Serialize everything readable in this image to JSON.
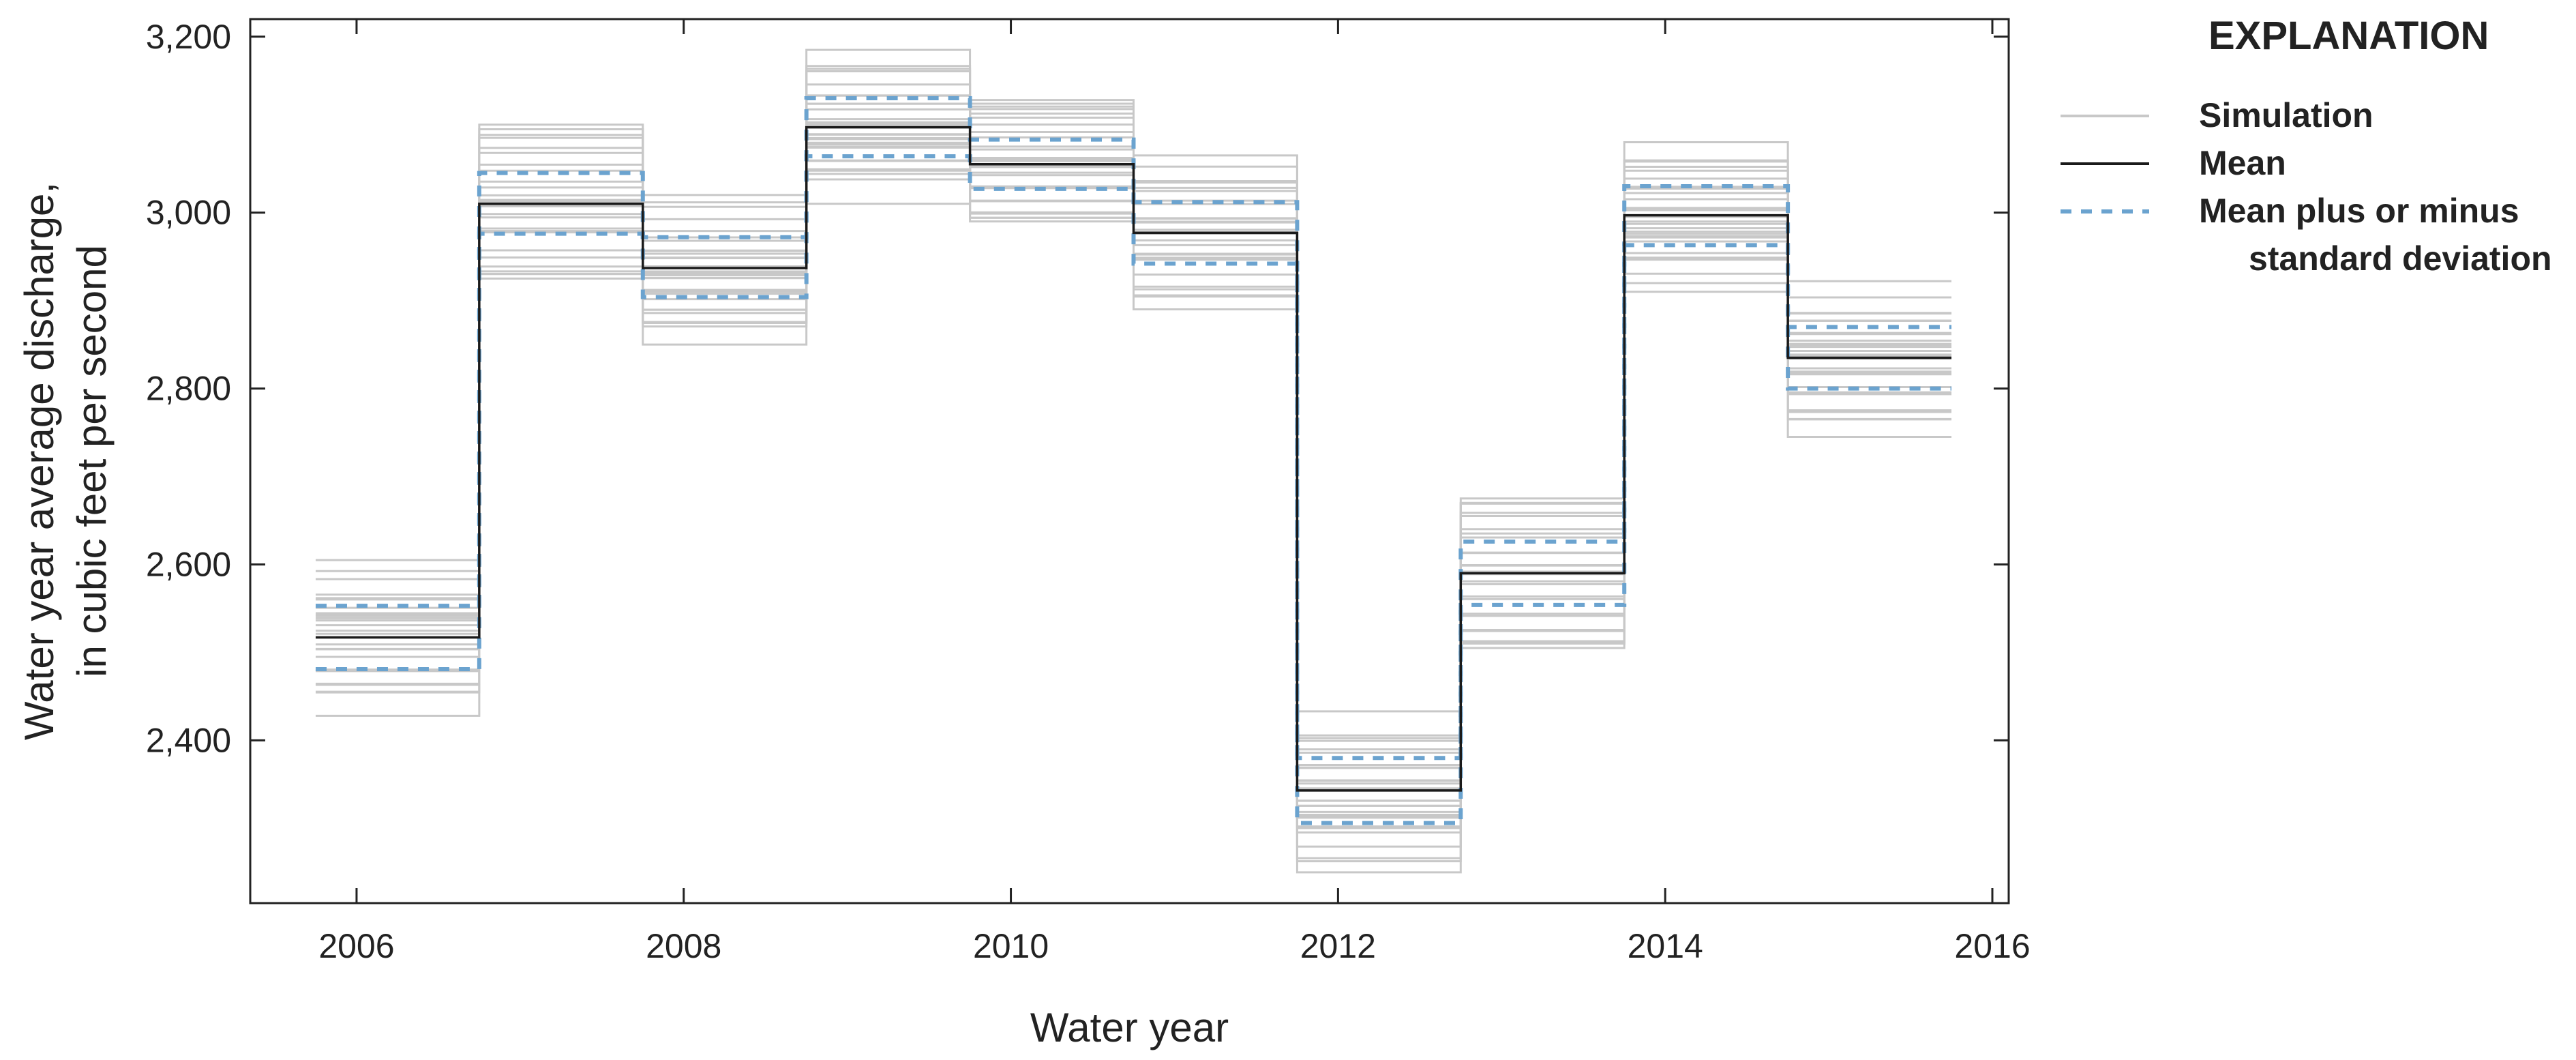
{
  "chart_data": {
    "type": "line",
    "xlabel": "Water year",
    "ylabel_lines": [
      "Water year average discharge,",
      "in cubic feet per second"
    ],
    "xlim": [
      2005.35,
      2016.1
    ],
    "ylim": [
      2215,
      3220
    ],
    "xticks": [
      2006,
      2008,
      2010,
      2012,
      2014,
      2016
    ],
    "xtick_labels": [
      "2006",
      "2008",
      "2010",
      "2012",
      "2014",
      "2016"
    ],
    "yticks": [
      2400,
      2600,
      2800,
      3000,
      3200
    ],
    "ytick_labels": [
      "2,400",
      "2,600",
      "2,800",
      "3,000",
      "3,200"
    ],
    "grid": false,
    "legend": {
      "title": "EXPLANATION",
      "placement": "right",
      "entries": [
        {
          "label_lines": [
            "Simulation"
          ],
          "style": "simulation"
        },
        {
          "label_lines": [
            "Mean"
          ],
          "style": "mean"
        },
        {
          "label_lines": [
            "Mean plus or minus",
            "standard deviation"
          ],
          "style": "std"
        }
      ]
    },
    "colors": {
      "simulation": "#c8c8c8",
      "mean": "#1a1a1a",
      "std": "#6ba3cf",
      "axis": "#222222"
    },
    "step_x_edges": [
      2005.75,
      2006.75,
      2007.75,
      2008.75,
      2009.75,
      2010.75,
      2011.75,
      2012.75,
      2013.75,
      2014.75,
      2015.75
    ],
    "years": [
      2006,
      2007,
      2008,
      2009,
      2010,
      2011,
      2012,
      2013,
      2014,
      2015
    ],
    "mean": [
      2517,
      3010,
      2937,
      3097,
      3055,
      2977,
      2343,
      2590,
      2997,
      2835
    ],
    "mean_plus_std": [
      2553,
      3045,
      2972,
      3130,
      3083,
      3012,
      2380,
      2626,
      3030,
      2870
    ],
    "mean_minus_std": [
      2481,
      2976,
      2904,
      3064,
      3027,
      2942,
      2306,
      2554,
      2963,
      2800
    ],
    "simulation_min": [
      2428,
      2925,
      2850,
      3010,
      2990,
      2890,
      2250,
      2505,
      2910,
      2745
    ],
    "simulation_max": [
      2605,
      3100,
      3020,
      3185,
      3128,
      3065,
      2433,
      2675,
      3080,
      2922
    ],
    "simulation_count": 30
  }
}
